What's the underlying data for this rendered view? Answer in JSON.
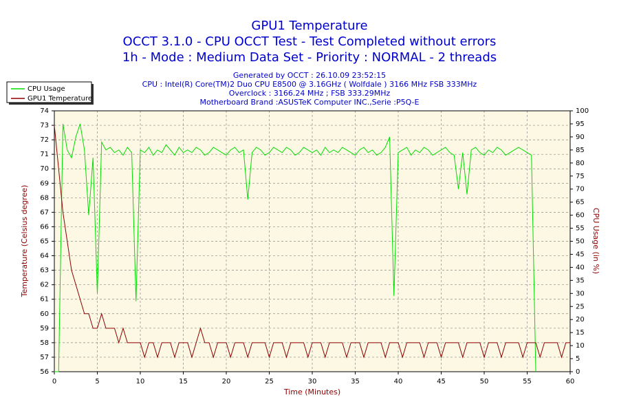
{
  "chart_data": {
    "type": "line",
    "title": "GPU1 Temperature",
    "title_lines": [
      "OCCT 3.1.0 - CPU OCCT Test - Test Completed without errors",
      "1h - Mode : Medium Data Set - Priority : NORMAL - 2 threads"
    ],
    "subtitle_lines": [
      "Generated by OCCT : 26.10.09 23:52:15",
      "CPU : Intel(R) Core(TM)2 Duo CPU E8500 @ 3.16GHz ( Wolfdale ) 3166 MHz FSB 333MHz",
      "Overclock : 3166.24 MHz ; FSB 333.29MHz",
      "Motherboard Brand :ASUSTeK Computer INC.,Serie :P5Q-E"
    ],
    "xlabel": "Time (Minutes)",
    "ylabel": "Temperature (Celsius degree)",
    "y2label": "CPU Usage (in %)",
    "xlim": [
      0,
      60
    ],
    "xticks": [
      0,
      5,
      10,
      15,
      20,
      25,
      30,
      35,
      40,
      45,
      50,
      55,
      60
    ],
    "ylim": [
      56,
      74
    ],
    "yticks": [
      56,
      57,
      58,
      59,
      60,
      61,
      62,
      63,
      64,
      65,
      66,
      67,
      68,
      69,
      70,
      71,
      72,
      73,
      74
    ],
    "y2lim": [
      0,
      100
    ],
    "y2ticks": [
      0,
      5,
      10,
      15,
      20,
      25,
      30,
      35,
      40,
      45,
      50,
      55,
      60,
      65,
      70,
      75,
      80,
      85,
      90,
      95,
      100
    ],
    "grid": true,
    "legend": "top-left",
    "x": [
      0,
      0.5,
      1,
      1.5,
      2,
      2.5,
      3,
      3.5,
      4,
      4.5,
      5,
      5.5,
      6,
      6.5,
      7,
      7.5,
      8,
      8.5,
      9,
      9.5,
      10,
      10.5,
      11,
      11.5,
      12,
      12.5,
      13,
      13.5,
      14,
      14.5,
      15,
      15.5,
      16,
      16.5,
      17,
      17.5,
      18,
      18.5,
      19,
      19.5,
      20,
      20.5,
      21,
      21.5,
      22,
      22.5,
      23,
      23.5,
      24,
      24.5,
      25,
      25.5,
      26,
      26.5,
      27,
      27.5,
      28,
      28.5,
      29,
      29.5,
      30,
      30.5,
      31,
      31.5,
      32,
      32.5,
      33,
      33.5,
      34,
      34.5,
      35,
      35.5,
      36,
      36.5,
      37,
      37.5,
      38,
      38.5,
      39,
      39.5,
      40,
      40.5,
      41,
      41.5,
      42,
      42.5,
      43,
      43.5,
      44,
      44.5,
      45,
      45.5,
      46,
      46.5,
      47,
      47.5,
      48,
      48.5,
      49,
      49.5,
      50,
      50.5,
      51,
      51.5,
      52,
      52.5,
      53,
      53.5,
      54,
      54.5,
      55,
      55.5,
      56,
      56.5,
      57,
      57.5,
      58,
      58.5,
      59,
      59.5,
      60
    ],
    "series": [
      {
        "name": "CPU Usage",
        "color": "#00dd00",
        "axis": "y2",
        "values": [
          0,
          0,
          95,
          85,
          82,
          90,
          95,
          85,
          60,
          82,
          30,
          88,
          85,
          86,
          84,
          85,
          83,
          86,
          84,
          27,
          85,
          84,
          86,
          83,
          85,
          84,
          87,
          85,
          83,
          86,
          84,
          85,
          84,
          86,
          85,
          83,
          84,
          86,
          85,
          84,
          83,
          85,
          86,
          84,
          85,
          66,
          84,
          86,
          85,
          83,
          84,
          86,
          85,
          84,
          86,
          85,
          83,
          84,
          86,
          85,
          84,
          85,
          83,
          86,
          84,
          85,
          84,
          86,
          85,
          84,
          83,
          85,
          86,
          84,
          85,
          83,
          84,
          86,
          90,
          29,
          84,
          85,
          86,
          83,
          85,
          84,
          86,
          85,
          83,
          84,
          85,
          86,
          84,
          83,
          70,
          84,
          68,
          85,
          86,
          84,
          83,
          85,
          84,
          86,
          85,
          83,
          84,
          85,
          86,
          85,
          84,
          83,
          0,
          null,
          null,
          null,
          null,
          null,
          null,
          null,
          null
        ]
      },
      {
        "name": "GPU1 Temperature",
        "color": "#8b0000",
        "values": [
          73,
          70,
          67,
          65,
          63,
          62,
          61,
          60,
          60,
          59,
          59,
          60,
          59,
          59,
          59,
          58,
          59,
          58,
          58,
          58,
          58,
          57,
          58,
          58,
          57,
          58,
          58,
          58,
          57,
          58,
          58,
          58,
          57,
          58,
          59,
          58,
          58,
          57,
          58,
          58,
          58,
          57,
          58,
          58,
          58,
          57,
          58,
          58,
          58,
          58,
          57,
          58,
          58,
          58,
          57,
          58,
          58,
          58,
          58,
          57,
          58,
          58,
          58,
          57,
          58,
          58,
          58,
          58,
          57,
          58,
          58,
          58,
          57,
          58,
          58,
          58,
          58,
          57,
          58,
          58,
          58,
          57,
          58,
          58,
          58,
          58,
          57,
          58,
          58,
          58,
          57,
          58,
          58,
          58,
          58,
          57,
          58,
          58,
          58,
          58,
          57,
          58,
          58,
          58,
          57,
          58,
          58,
          58,
          58,
          57,
          58,
          58,
          58,
          57,
          58,
          58,
          58,
          58,
          57,
          58,
          58
        ]
      }
    ]
  }
}
